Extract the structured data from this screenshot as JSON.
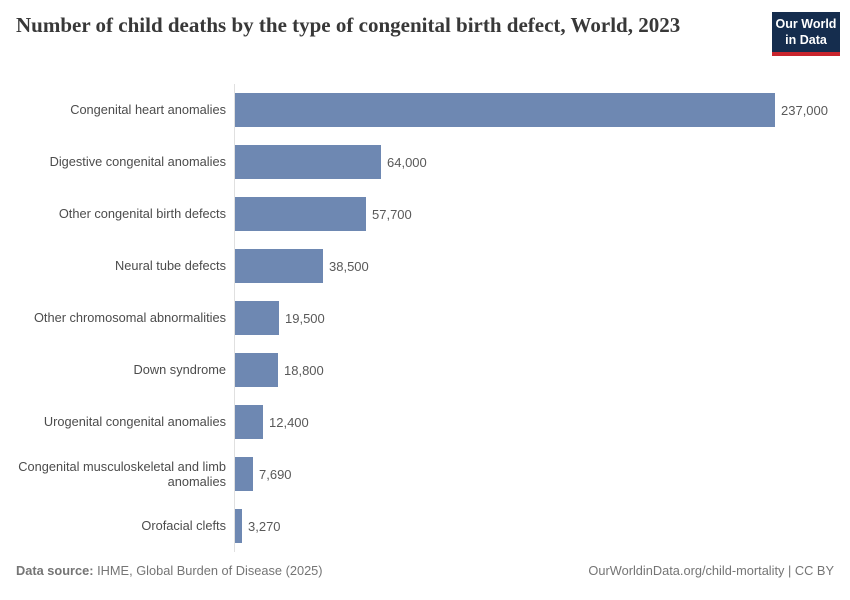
{
  "header": {
    "title": "Number of child deaths by the type of congenital birth defect, World, 2023",
    "logo": {
      "line1": "Our World",
      "line2": "in Data"
    }
  },
  "chart_data": {
    "type": "bar",
    "orientation": "horizontal",
    "title": "Number of child deaths by the type of congenital birth defect, World, 2023",
    "xlabel": "",
    "ylabel": "",
    "xlim": [
      0,
      237000
    ],
    "grid": false,
    "legend": "none",
    "bar_color": "#6e88b2",
    "categories": [
      "Congenital heart anomalies",
      "Digestive congenital anomalies",
      "Other congenital birth defects",
      "Neural tube defects",
      "Other chromosomal abnormalities",
      "Down syndrome",
      "Urogenital congenital anomalies",
      "Congenital musculoskeletal and limb anomalies",
      "Orofacial clefts"
    ],
    "values": [
      237000,
      64000,
      57700,
      38500,
      19500,
      18800,
      12400,
      7690,
      3270
    ],
    "value_labels": [
      "237,000",
      "64,000",
      "57,700",
      "38,500",
      "19,500",
      "18,800",
      "12,400",
      "7,690",
      "3,270"
    ]
  },
  "footer": {
    "source_label": "Data source:",
    "source_rest": " IHME, Global Burden of Disease (2025)",
    "link_text": "OurWorldinData.org/child-mortality | CC BY"
  },
  "colors": {
    "bar": "#6e88b2",
    "axis": "#e0e0e0",
    "logo_bg": "#152d4e",
    "logo_underline": "#c9252d",
    "title_text": "#383838",
    "label_text": "#4c4c4c",
    "value_text": "#595959",
    "footer_text": "#757575"
  }
}
